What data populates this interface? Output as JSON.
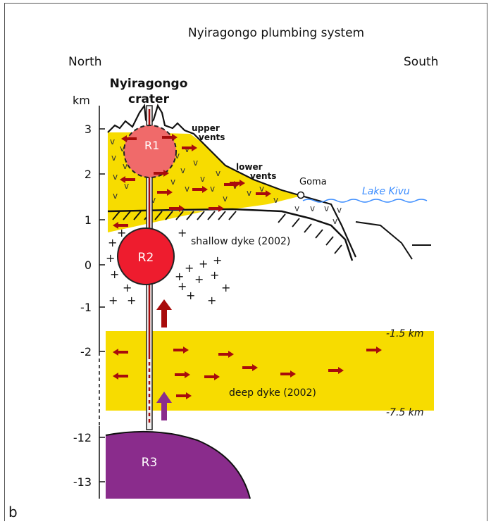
{
  "title": "Nyiragongo plumbing system",
  "direction_left": "North",
  "direction_right": "South",
  "axis_unit": "km",
  "axis_ticks": [
    "3",
    "2",
    "1",
    "0",
    "-1",
    "-2",
    "-12",
    "-13"
  ],
  "crater_label_line1": "Nyiragongo",
  "crater_label_line2": "crater",
  "upper_vents_line1": "upper",
  "upper_vents_line2": "vents",
  "lower_vents_line1": "lower",
  "lower_vents_line2": "vents",
  "goma_label": "Goma",
  "lake_label": "Lake Kivu",
  "shallow_dyke_label": "shallow dyke (2002)",
  "deep_dyke_label": "deep dyke (2002)",
  "depth_top_label": "-1.5 km",
  "depth_bottom_label": "-7.5 km",
  "reservoir_r1": "R1",
  "reservoir_r2": "R2",
  "reservoir_r3": "R3",
  "panel_label": "b",
  "colors": {
    "yellow": "#f7dc00",
    "red_arrow": "#a80c0c",
    "r1_fill": "#f06a6a",
    "r2_fill": "#ee1c2e",
    "r3_fill": "#8a2c8c",
    "purple_arrow": "#8a2c8c",
    "lake": "#3a8cff"
  }
}
